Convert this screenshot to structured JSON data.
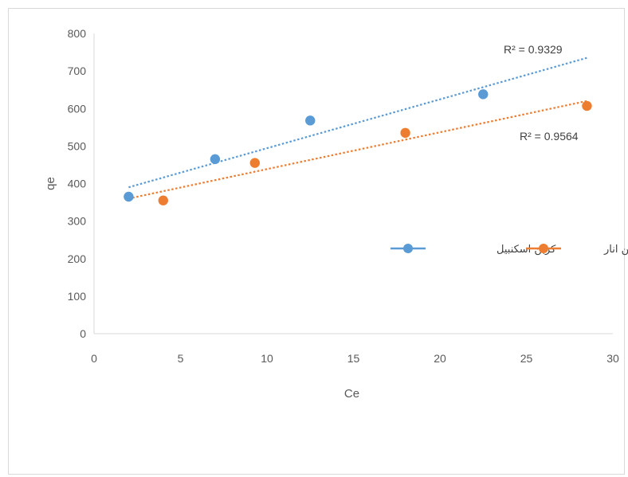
{
  "chart_data": {
    "type": "scatter",
    "xlabel": "Ce",
    "ylabel": "qe",
    "xlim": [
      0,
      30
    ],
    "ylim": [
      0,
      800
    ],
    "xticks": [
      "0",
      "5",
      "10",
      "15",
      "20",
      "25",
      "30"
    ],
    "yticks": [
      "0",
      "100",
      "200",
      "300",
      "400",
      "500",
      "600",
      "700",
      "800"
    ],
    "grid": false,
    "legend_position": "right",
    "series": [
      {
        "name": "کربن اسکنبیل",
        "color": "#5b9bd5",
        "x": [
          2,
          7,
          12.5,
          22.5
        ],
        "y": [
          365,
          465,
          568,
          638
        ],
        "trendline": {
          "type": "linear",
          "x_range": [
            2,
            28.5
          ],
          "y_range": [
            390,
            735
          ],
          "r2_label": "R² = 0.9329"
        }
      },
      {
        "name": "کربن انار",
        "color": "#ed7d31",
        "x": [
          4,
          9.3,
          18,
          28.5
        ],
        "y": [
          355,
          455,
          535,
          607
        ],
        "trendline": {
          "type": "linear",
          "x_range": [
            2,
            28.5
          ],
          "y_range": [
            360,
            620
          ],
          "r2_label": "R² = 0.9564"
        }
      }
    ]
  }
}
